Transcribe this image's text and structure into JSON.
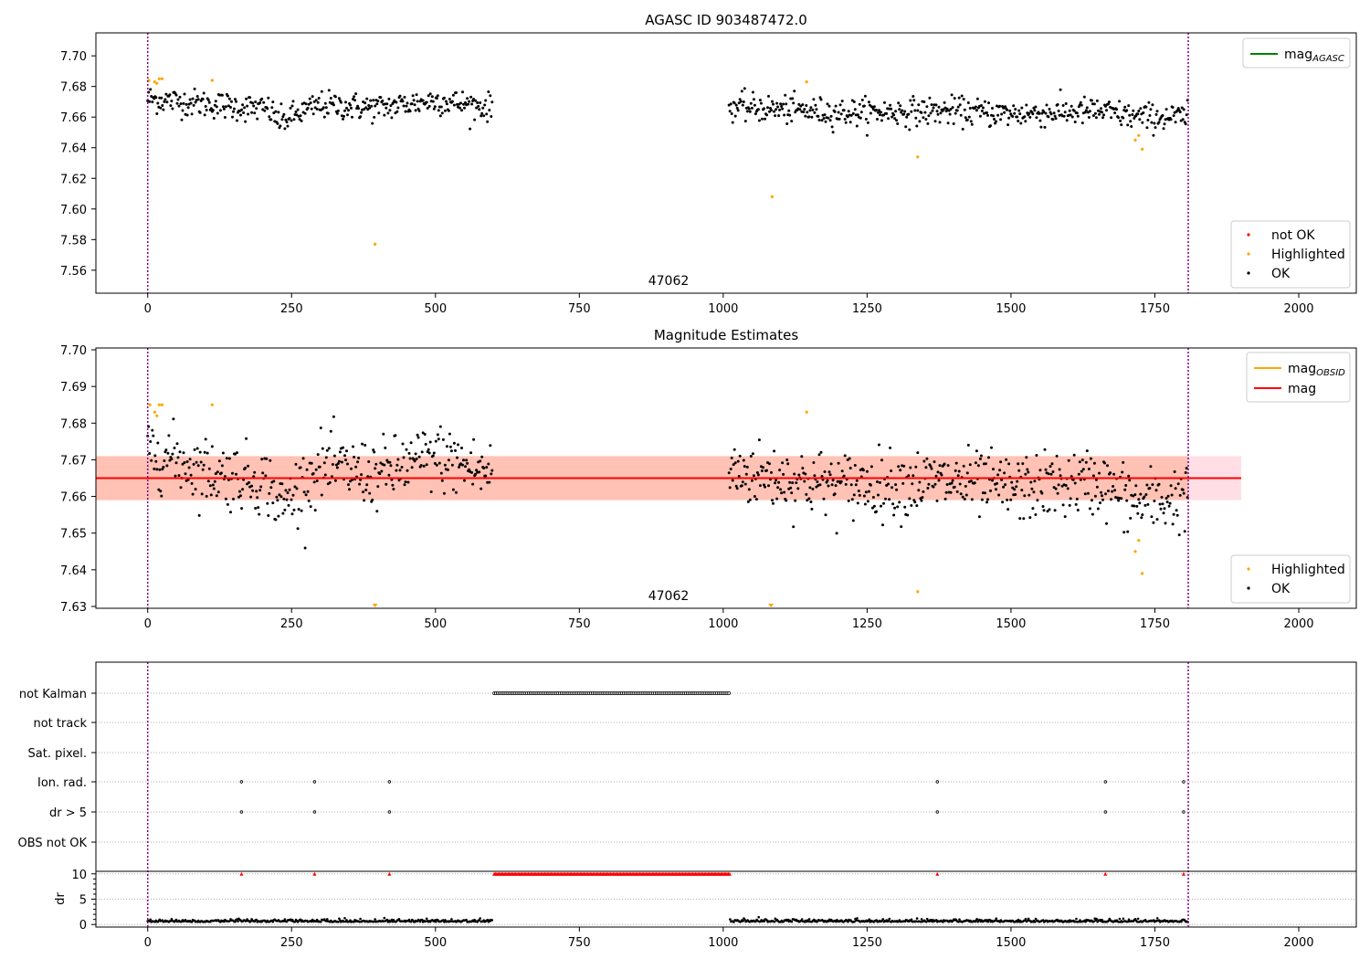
{
  "chart_data": [
    {
      "type": "scatter",
      "title": "AGASC ID 903487472.0",
      "annotation": "47062",
      "xlim": [
        -90,
        2100
      ],
      "ylim": [
        7.545,
        7.715
      ],
      "xticks": [
        0,
        250,
        500,
        750,
        1000,
        1250,
        1500,
        1750,
        2000
      ],
      "yticks": [
        7.56,
        7.58,
        7.6,
        7.62,
        7.64,
        7.66,
        7.68,
        7.7
      ],
      "yticks_labels": [
        "7.56",
        "7.58",
        "7.60",
        "7.62",
        "7.64",
        "7.66",
        "7.68",
        "7.70"
      ],
      "vlines": [
        0,
        1808
      ],
      "legend_lines": [
        {
          "label": "mag",
          "sub": "AGASC",
          "color": "#008000"
        }
      ],
      "legend_points": [
        {
          "label": "not OK",
          "color": "#ff0000"
        },
        {
          "label": "Highlighted",
          "color": "#ffa500"
        },
        {
          "label": "OK",
          "color": "#000000"
        }
      ],
      "segments": [
        {
          "x0": 0,
          "x1": 600,
          "step": 1.6,
          "trend": [
            [
              0,
              7.672
            ],
            [
              210,
              7.665
            ],
            [
              230,
              7.657
            ],
            [
              260,
              7.662
            ],
            [
              300,
              7.668
            ],
            [
              400,
              7.666
            ],
            [
              500,
              7.671
            ],
            [
              600,
              7.666
            ]
          ],
          "noise": 0.0045
        },
        {
          "x0": 1010,
          "x1": 1808,
          "step": 1.6,
          "trend": [
            [
              1010,
              7.667
            ],
            [
              1100,
              7.665
            ],
            [
              1200,
              7.663
            ],
            [
              1400,
              7.664
            ],
            [
              1500,
              7.662
            ],
            [
              1650,
              7.664
            ],
            [
              1720,
              7.66
            ],
            [
              1808,
              7.66
            ]
          ],
          "noise": 0.0045
        }
      ],
      "highlighted": [
        [
          2,
          7.684
        ],
        [
          12,
          7.683
        ],
        [
          16,
          7.682
        ],
        [
          20,
          7.685
        ],
        [
          25,
          7.685
        ],
        [
          112,
          7.684
        ],
        [
          395,
          7.577
        ],
        [
          1085,
          7.608
        ],
        [
          1145,
          7.683
        ],
        [
          1338,
          7.634
        ],
        [
          1716,
          7.645
        ],
        [
          1722,
          7.648
        ],
        [
          1728,
          7.639
        ]
      ]
    },
    {
      "type": "scatter",
      "title": "Magnitude Estimates",
      "annotation": "47062",
      "xlim": [
        -90,
        2100
      ],
      "ylim": [
        7.6295,
        7.7005
      ],
      "xticks": [
        0,
        250,
        500,
        750,
        1000,
        1250,
        1500,
        1750,
        2000
      ],
      "yticks": [
        7.63,
        7.64,
        7.65,
        7.66,
        7.67,
        7.68,
        7.69,
        7.7
      ],
      "yticks_labels": [
        "7.63",
        "7.64",
        "7.65",
        "7.66",
        "7.67",
        "7.68",
        "7.69",
        "7.70"
      ],
      "vlines": [
        0,
        1808
      ],
      "mag": 7.665,
      "band_pink": [
        -90,
        1900,
        7.659,
        7.671
      ],
      "band_orange": [
        -90,
        1808,
        7.659,
        7.671
      ],
      "legend_lines": [
        {
          "label": "mag",
          "sub": "OBSID",
          "color": "#ffa500"
        },
        {
          "label": "mag",
          "sub": "",
          "color": "#ff0000"
        }
      ],
      "legend_points": [
        {
          "label": "Highlighted",
          "color": "#ffa500"
        },
        {
          "label": "OK",
          "color": "#000000"
        }
      ],
      "segments": [
        {
          "x0": 0,
          "x1": 600,
          "step": 1.6,
          "trend": [
            [
              0,
              7.673
            ],
            [
              100,
              7.667
            ],
            [
              210,
              7.664
            ],
            [
              230,
              7.657
            ],
            [
              260,
              7.662
            ],
            [
              300,
              7.668
            ],
            [
              400,
              7.666
            ],
            [
              500,
              7.671
            ],
            [
              600,
              7.666
            ]
          ],
          "noise": 0.0045
        },
        {
          "x0": 1010,
          "x1": 1808,
          "step": 1.6,
          "trend": [
            [
              1010,
              7.667
            ],
            [
              1100,
              7.665
            ],
            [
              1200,
              7.663
            ],
            [
              1400,
              7.664
            ],
            [
              1500,
              7.662
            ],
            [
              1650,
              7.664
            ],
            [
              1720,
              7.658
            ],
            [
              1808,
              7.66
            ]
          ],
          "noise": 0.0045
        }
      ],
      "highlighted": [
        [
          4,
          7.685
        ],
        [
          12,
          7.683
        ],
        [
          16,
          7.682
        ],
        [
          20,
          7.685
        ],
        [
          25,
          7.685
        ],
        [
          112,
          7.685
        ],
        [
          1145,
          7.683
        ],
        [
          1338,
          7.634
        ],
        [
          1716,
          7.645
        ],
        [
          1722,
          7.648
        ],
        [
          1728,
          7.639
        ]
      ],
      "markers_below": [
        395,
        1083
      ]
    },
    {
      "type": "scatter",
      "title": "",
      "xlim": [
        -90,
        2100
      ],
      "xticks": [
        0,
        250,
        500,
        750,
        1000,
        1250,
        1500,
        1750,
        2000
      ],
      "vlines": [
        0,
        1808
      ],
      "flag_rows": [
        "not Kalman",
        "not track",
        "Sat. pixel.",
        "Ion. rad.",
        "dr > 5",
        "OBS not OK"
      ],
      "flag_points": {
        "not Kalman": {
          "range": [
            602,
            1012
          ],
          "step": 3
        },
        "Ion. rad.": {
          "points": [
            163,
            290,
            420,
            1372,
            1664,
            1800
          ]
        },
        "dr > 5": {
          "points": [
            163,
            290,
            420,
            1372,
            1664,
            1800
          ]
        }
      },
      "dr": {
        "ylabel": "dr",
        "ylim": [
          -0.5,
          10.5
        ],
        "yticks": [
          0,
          5,
          10
        ],
        "yticks_labels": [
          "0",
          "5",
          "10"
        ],
        "clipped": {
          "ranges": [
            [
              602,
              1012
            ]
          ],
          "points": [
            163,
            290,
            420,
            1372,
            1664,
            1800
          ]
        },
        "segments": [
          [
            0,
            600
          ],
          [
            1012,
            1808
          ]
        ],
        "base": 0.5
      }
    }
  ]
}
